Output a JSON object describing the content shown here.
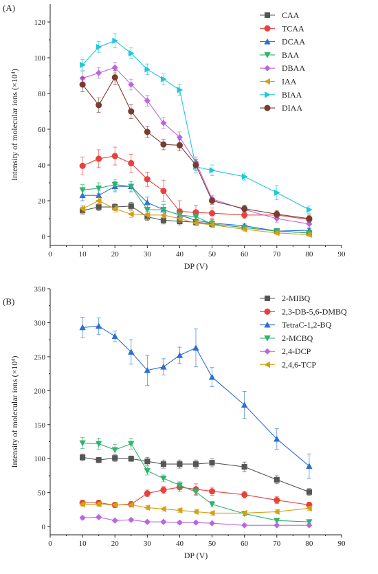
{
  "chart_data": [
    {
      "type": "line",
      "panel_label": "(A)",
      "xlabel": "DP (V)",
      "ylabel": "Intensity of molecular ions (×10⁴)",
      "xlim": [
        0,
        90
      ],
      "ylim": [
        -5,
        130
      ],
      "xticks": [
        0,
        10,
        20,
        30,
        40,
        50,
        60,
        70,
        80,
        90
      ],
      "yticks": [
        0,
        20,
        40,
        60,
        80,
        100,
        120
      ],
      "xtick_labels": [
        "0",
        "10",
        "20",
        "30",
        "40",
        "50",
        "60",
        "70",
        "80",
        "90"
      ],
      "ytick_labels": [
        "0",
        "20",
        "40",
        "60",
        "80",
        "100",
        "120"
      ],
      "grid": false,
      "legend_position": "top-right",
      "x": [
        10,
        15,
        20,
        25,
        30,
        35,
        40,
        45,
        50,
        60,
        70,
        80
      ],
      "series": [
        {
          "name": "CAA",
          "color": "#555555",
          "marker": "square",
          "values": [
            14.5,
            16.5,
            16.5,
            17,
            11,
            9,
            8.5,
            8,
            7,
            5,
            3,
            2
          ],
          "errors": [
            2,
            2,
            2,
            2,
            2,
            2,
            2,
            1.5,
            1.5,
            1,
            1,
            1
          ]
        },
        {
          "name": "TCAA",
          "color": "#e8403a",
          "marker": "circle",
          "values": [
            39.5,
            43.5,
            45,
            41,
            32,
            25.5,
            14,
            13.5,
            13,
            12,
            12,
            9.5
          ],
          "errors": [
            5,
            5,
            5,
            5,
            4,
            6,
            6,
            4,
            3,
            2,
            2,
            2
          ]
        },
        {
          "name": "DCAA",
          "color": "#2a6fd6",
          "marker": "triangle-up",
          "values": [
            23,
            23,
            28,
            28,
            19,
            15,
            12,
            9,
            7.5,
            6,
            3,
            3.5
          ],
          "errors": [
            3,
            3,
            3,
            3,
            3,
            3,
            3,
            2,
            2,
            1,
            1,
            1
          ]
        },
        {
          "name": "BAA",
          "color": "#2fb36f",
          "marker": "triangle-down",
          "values": [
            26,
            27,
            29,
            28,
            15,
            15,
            12,
            11,
            7,
            5,
            3,
            2
          ],
          "errors": [
            3,
            3,
            3,
            3,
            3,
            3,
            3,
            2,
            2,
            1,
            1,
            1
          ]
        },
        {
          "name": "DBAA",
          "color": "#bb66e0",
          "marker": "diamond",
          "values": [
            88.5,
            91.5,
            94.5,
            85,
            76,
            63.5,
            55.5,
            41.5,
            21,
            15,
            10,
            7
          ],
          "errors": [
            4,
            3,
            3,
            3,
            3,
            3,
            3,
            3,
            2,
            2,
            2,
            2
          ]
        },
        {
          "name": "IAA",
          "color": "#d4a017",
          "marker": "triangle-left",
          "values": [
            15.5,
            20,
            15.5,
            12.5,
            12,
            12,
            10,
            7.5,
            6.5,
            4,
            2,
            1
          ],
          "errors": [
            2,
            2,
            2,
            2,
            2,
            2,
            2,
            1.5,
            1.5,
            1,
            1,
            1
          ]
        },
        {
          "name": "BIAA",
          "color": "#1ec8d8",
          "marker": "triangle-right",
          "values": [
            96,
            106,
            109.5,
            102.5,
            93.5,
            88,
            82,
            39,
            37,
            33.5,
            24.5,
            15
          ],
          "errors": [
            3,
            3,
            4,
            3,
            3,
            3,
            3,
            3,
            3,
            2,
            4,
            2
          ]
        },
        {
          "name": "DIAA",
          "color": "#7a3b2e",
          "marker": "circle",
          "values": [
            85,
            73.5,
            89,
            70,
            58.5,
            51.5,
            51,
            40,
            20,
            15.5,
            12.5,
            10
          ],
          "errors": [
            4,
            4,
            4,
            4,
            3,
            3,
            3,
            3,
            2,
            2,
            2,
            2
          ]
        }
      ]
    },
    {
      "type": "line",
      "panel_label": "(B)",
      "xlabel": "DP (V)",
      "ylabel": "Intensity of molecular ions (×10⁴)",
      "xlim": [
        0,
        90
      ],
      "ylim": [
        -12,
        350
      ],
      "xticks": [
        0,
        10,
        20,
        30,
        40,
        50,
        60,
        70,
        80,
        90
      ],
      "yticks": [
        0,
        50,
        100,
        150,
        200,
        250,
        300,
        350
      ],
      "xtick_labels": [
        "0",
        "10",
        "20",
        "30",
        "40",
        "50",
        "60",
        "70",
        "80",
        "90"
      ],
      "ytick_labels": [
        "0",
        "50",
        "100",
        "150",
        "200",
        "250",
        "300",
        "350"
      ],
      "grid": false,
      "legend_position": "top-right",
      "x": [
        10,
        15,
        20,
        25,
        30,
        35,
        40,
        45,
        50,
        60,
        70,
        80
      ],
      "series": [
        {
          "name": "2-MIBQ",
          "color": "#555555",
          "marker": "square",
          "values": [
            102,
            98,
            101,
            100,
            96,
            92,
            92,
            92,
            94,
            88,
            69,
            51
          ],
          "errors": [
            5,
            4,
            5,
            4,
            6,
            6,
            6,
            6,
            6,
            7,
            6,
            5
          ]
        },
        {
          "name": "2,3-DB-5,6-DMBQ",
          "color": "#e8403a",
          "marker": "circle",
          "values": [
            35,
            35,
            32,
            33,
            49,
            54,
            58,
            55,
            52,
            47,
            39,
            32
          ],
          "errors": [
            4,
            4,
            4,
            4,
            5,
            5,
            6,
            8,
            6,
            5,
            5,
            4
          ]
        },
        {
          "name": "TetraC-1,2-BQ",
          "color": "#2a6fd6",
          "marker": "triangle-up",
          "values": [
            293,
            295,
            280,
            257,
            230,
            235,
            252,
            263,
            220,
            179,
            129,
            89
          ],
          "errors": [
            15,
            12,
            8,
            18,
            22,
            12,
            12,
            28,
            14,
            20,
            15,
            18
          ]
        },
        {
          "name": "2-MCBQ",
          "color": "#2fb36f",
          "marker": "triangle-down",
          "values": [
            123,
            122,
            113,
            122,
            82,
            71,
            61,
            51,
            33,
            19,
            9,
            7
          ],
          "errors": [
            8,
            8,
            8,
            8,
            6,
            5,
            5,
            5,
            4,
            3,
            2,
            2
          ]
        },
        {
          "name": "2,4-DCP",
          "color": "#bb66e0",
          "marker": "diamond",
          "values": [
            13,
            14,
            9,
            10,
            7,
            7,
            6,
            6,
            5,
            2,
            2,
            2
          ],
          "errors": [
            2,
            2,
            2,
            2,
            2,
            2,
            2,
            2,
            2,
            1,
            1,
            1
          ]
        },
        {
          "name": "2,4,6-TCP",
          "color": "#d4a017",
          "marker": "triangle-left",
          "values": [
            33,
            33,
            32,
            32,
            28,
            26,
            24,
            22,
            20,
            20,
            22,
            27
          ],
          "errors": [
            3,
            3,
            3,
            3,
            3,
            3,
            3,
            3,
            3,
            3,
            3,
            3
          ]
        }
      ]
    }
  ]
}
